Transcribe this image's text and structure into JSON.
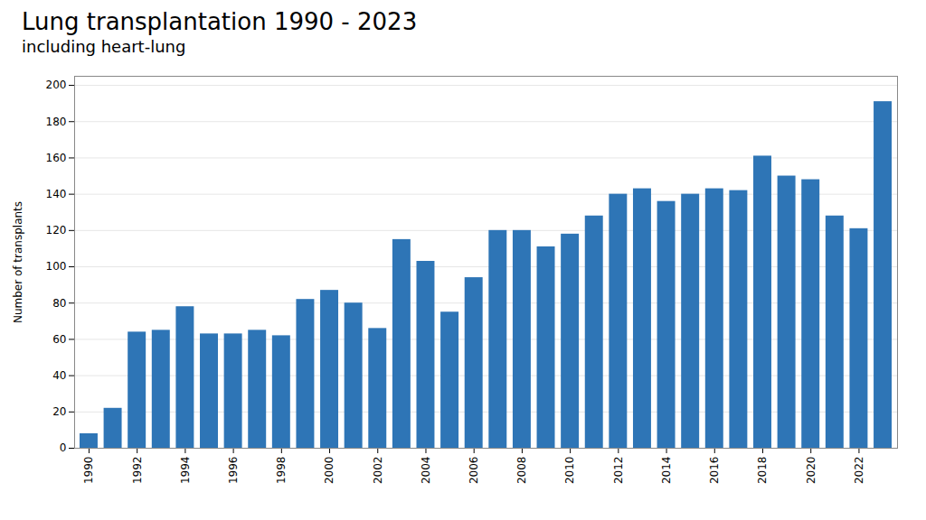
{
  "chart_data": {
    "type": "bar",
    "title": "Lung transplantation 1990 - 2023",
    "subtitle": "including heart-lung",
    "y_label": "Number of transplants",
    "x": [
      1990,
      1991,
      1992,
      1993,
      1994,
      1995,
      1996,
      1997,
      1998,
      1999,
      2000,
      2001,
      2002,
      2003,
      2004,
      2005,
      2006,
      2007,
      2008,
      2009,
      2010,
      2011,
      2012,
      2013,
      2014,
      2015,
      2016,
      2017,
      2018,
      2019,
      2020,
      2021,
      2022,
      2023
    ],
    "values": [
      8,
      22,
      64,
      65,
      78,
      63,
      63,
      65,
      62,
      82,
      87,
      80,
      66,
      115,
      103,
      75,
      94,
      120,
      120,
      111,
      118,
      128,
      140,
      143,
      136,
      140,
      143,
      142,
      161,
      150,
      148,
      128,
      121,
      191
    ],
    "color": "#2E75B6",
    "xlim": [
      1989.4,
      2023.6
    ],
    "xticks": [
      1990,
      1992,
      1994,
      1996,
      1998,
      2000,
      2002,
      2004,
      2006,
      2008,
      2010,
      2012,
      2014,
      2016,
      2018,
      2020,
      2022
    ],
    "ylim": [
      0,
      205
    ],
    "yticks": [
      0,
      20,
      40,
      60,
      80,
      100,
      120,
      140,
      160,
      180,
      200
    ],
    "grid": true
  }
}
